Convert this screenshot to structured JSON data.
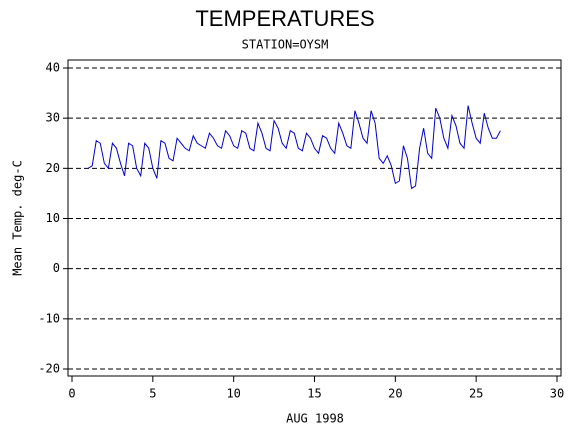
{
  "chart_data": {
    "type": "line",
    "title": "TEMPERATURES",
    "subtitle": "STATION=OYSM",
    "x_label": "AUG 1998",
    "y_label": "Mean Temp. deg-C",
    "x": [
      1,
      1.25,
      1.5,
      1.75,
      2,
      2.25,
      2.5,
      2.75,
      3,
      3.25,
      3.5,
      3.75,
      4,
      4.25,
      4.5,
      4.75,
      5,
      5.25,
      5.5,
      5.75,
      6,
      6.25,
      6.5,
      6.75,
      7,
      7.25,
      7.5,
      7.75,
      8,
      8.25,
      8.5,
      8.75,
      9,
      9.25,
      9.5,
      9.75,
      10,
      10.25,
      10.5,
      10.75,
      11,
      11.25,
      11.5,
      11.75,
      12,
      12.25,
      12.5,
      12.75,
      13,
      13.25,
      13.5,
      13.75,
      14,
      14.25,
      14.5,
      14.75,
      15,
      15.25,
      15.5,
      15.75,
      16,
      16.25,
      16.5,
      16.75,
      17,
      17.25,
      17.5,
      17.75,
      18,
      18.25,
      18.5,
      18.75,
      19,
      19.25,
      19.5,
      19.75,
      20,
      20.25,
      20.5,
      20.75,
      21,
      21.25,
      21.5,
      21.75,
      22,
      22.25,
      22.5,
      22.75,
      23,
      23.25,
      23.5,
      23.75,
      24,
      24.25,
      24.5,
      24.75,
      25,
      25.25,
      25.5,
      25.75,
      26,
      26.25,
      26.5
    ],
    "series": [
      {
        "name": "Mean Temp.",
        "color": "#0000cc",
        "values": [
          20,
          20.5,
          25.5,
          25,
          21,
          20,
          25,
          24,
          21,
          18.5,
          25,
          24.5,
          20,
          18.5,
          25,
          24,
          20,
          18,
          25.5,
          25,
          22,
          21.5,
          26,
          25,
          24,
          23.5,
          26.5,
          25,
          24.5,
          24,
          27,
          26,
          24.5,
          24,
          27.5,
          26.5,
          24.5,
          24,
          27.5,
          27,
          24,
          23.5,
          29,
          27,
          24,
          23.5,
          29.5,
          28,
          25,
          24,
          27.5,
          27,
          24,
          23.5,
          27,
          26,
          24,
          23,
          26.5,
          26,
          24,
          23,
          29,
          27,
          24.5,
          24,
          31.5,
          29,
          26,
          25,
          31.5,
          29,
          22,
          21,
          22.5,
          20.5,
          17,
          17.5,
          24.5,
          22,
          16,
          16.5,
          24,
          28,
          23,
          22,
          32,
          30,
          26,
          24,
          30.5,
          28.5,
          25,
          24,
          32.5,
          29,
          26,
          25,
          31,
          28,
          26,
          26,
          27.5
        ]
      }
    ],
    "xlim": [
      0,
      30
    ],
    "xticks": [
      0,
      5,
      10,
      15,
      20,
      25,
      30
    ],
    "ylim": [
      -20,
      40
    ],
    "yticks": [
      -20,
      -10,
      0,
      10,
      20,
      30,
      40
    ],
    "grid": true
  }
}
